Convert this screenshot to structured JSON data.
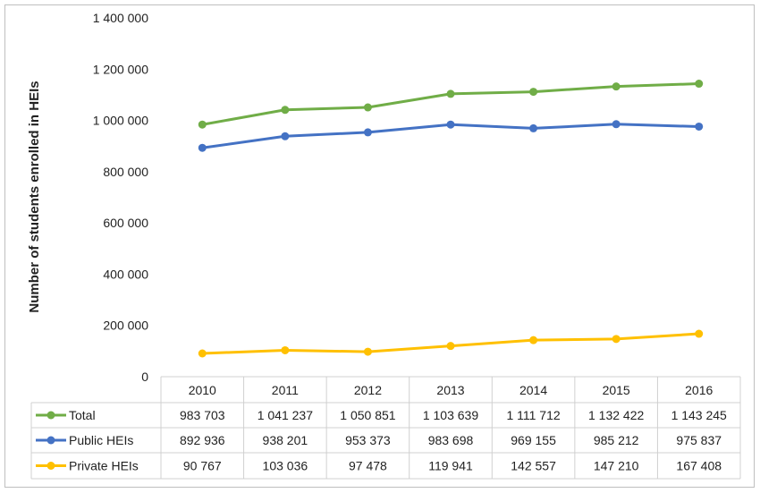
{
  "chart_data": {
    "type": "line",
    "title": "",
    "xlabel": "",
    "ylabel": "Number of students enrolled  in HEIs",
    "ylim": [
      0,
      1400000
    ],
    "yticks": [
      0,
      200000,
      400000,
      600000,
      800000,
      1000000,
      1200000,
      1400000
    ],
    "ytick_labels": [
      "0",
      "200 000",
      "400 000",
      "600 000",
      "800 000",
      "1 000 000",
      "1 200 000",
      "1 400 000"
    ],
    "grid": false,
    "legend": "data-table",
    "categories": [
      "2010",
      "2011",
      "2012",
      "2013",
      "2014",
      "2015",
      "2016"
    ],
    "series": [
      {
        "name": "Total",
        "color": "#70ad47",
        "values": [
          983703,
          1041237,
          1050851,
          1103639,
          1111712,
          1132422,
          1143245
        ],
        "labels": [
          "983 703",
          "1 041 237",
          "1 050 851",
          "1 103 639",
          "1 111 712",
          "1 132 422",
          "1 143 245"
        ]
      },
      {
        "name": "Public HEIs",
        "color": "#4472c4",
        "values": [
          892936,
          938201,
          953373,
          983698,
          969155,
          985212,
          975837
        ],
        "labels": [
          "892 936",
          "938 201",
          "953 373",
          "983 698",
          "969 155",
          "985 212",
          "975 837"
        ]
      },
      {
        "name": "Private HEIs",
        "color": "#ffc000",
        "values": [
          90767,
          103036,
          97478,
          119941,
          142557,
          147210,
          167408
        ],
        "labels": [
          "90 767",
          "103 036",
          "97 478",
          "119 941",
          "142 557",
          "147 210",
          "167 408"
        ]
      }
    ]
  }
}
